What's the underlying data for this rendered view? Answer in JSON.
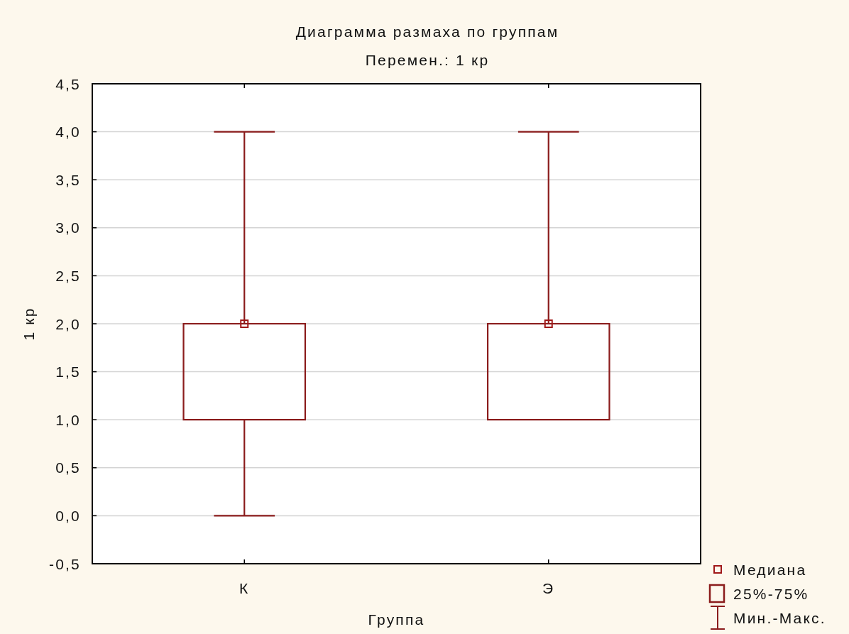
{
  "chart_data": {
    "type": "box",
    "title": "Диаграмма размаха по группам",
    "subtitle": "Перемен.: 1 кр",
    "xlabel": "Группа",
    "ylabel": "1 кр",
    "categories": [
      "К",
      "Э"
    ],
    "series": [
      {
        "color": "#8b1c1c",
        "boxes": [
          {
            "low": 0,
            "q1": 1,
            "median": 2,
            "q3": 2,
            "high": 4
          },
          {
            "low": 1,
            "q1": 1,
            "median": 2,
            "q3": 2,
            "high": 4
          }
        ]
      },
      {
        "type": "scatter",
        "name": "Медиана",
        "color": "#a01818",
        "x": [
          "К",
          "Э"
        ],
        "values": [
          2,
          2
        ],
        "marker": "square"
      }
    ],
    "ylim": [
      -0.5,
      4.5
    ],
    "yticks": [
      {
        "value": -0.5,
        "label": "-0,5"
      },
      {
        "value": 0,
        "label": "0,0"
      },
      {
        "value": 0.5,
        "label": "0,5"
      },
      {
        "value": 1,
        "label": "1,0"
      },
      {
        "value": 1.5,
        "label": "1,5"
      },
      {
        "value": 2,
        "label": "2,0"
      },
      {
        "value": 2.5,
        "label": "2,5"
      },
      {
        "value": 3,
        "label": "3,0"
      },
      {
        "value": 3.5,
        "label": "3,5"
      },
      {
        "value": 4,
        "label": "4,0"
      },
      {
        "value": 4.5,
        "label": "4,5"
      }
    ],
    "grid": "y",
    "legend": "bottom right",
    "annotations": [
      "25%-75%",
      "Мин.-Макс."
    ]
  }
}
